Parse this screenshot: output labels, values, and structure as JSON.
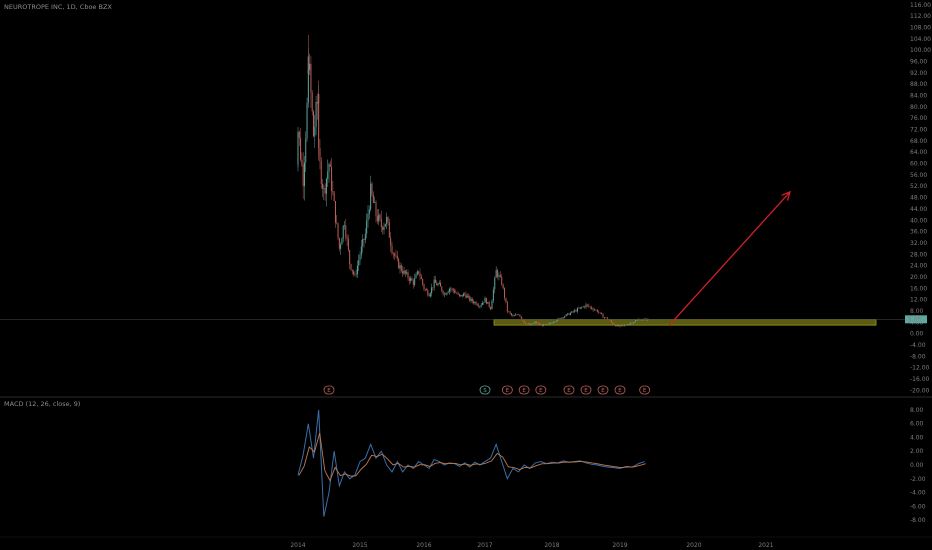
{
  "header": {
    "symbol_title": "NEUROTROPE INC, 1D, Cboe BZX"
  },
  "indicator": {
    "title": "MACD (12, 26, close, 9)"
  },
  "last_price_label": "5.05",
  "chart_data": [
    {
      "type": "candlestick",
      "title": "NEUROTROPE INC, 1D, Cboe BZX",
      "x_ticks": [
        "2014",
        "2015",
        "2016",
        "2017",
        "2018",
        "2019",
        "2020",
        "2021"
      ],
      "y_ticks": [
        "112.00",
        "108.00",
        "104.00",
        "100.00",
        "96.00",
        "92.00",
        "88.00",
        "84.00",
        "80.00",
        "76.00",
        "72.00",
        "68.00",
        "64.00",
        "60.00",
        "56.00",
        "52.00",
        "48.00",
        "44.00",
        "40.00",
        "36.00",
        "32.00",
        "28.00",
        "24.00",
        "20.00",
        "16.00",
        "12.00",
        "8.00",
        "4.00",
        "0.00",
        "-4.00",
        "-8.00",
        "-12.00",
        "-16.00",
        "-20.00"
      ],
      "y_top_label": "116.00",
      "ylim": [
        -22,
        117
      ],
      "close_series": [
        [
          "2014-01",
          60
        ],
        [
          "2014-01",
          72
        ],
        [
          "2014-02",
          55
        ],
        [
          "2014-03",
          88
        ],
        [
          "2014-03",
          98
        ],
        [
          "2014-04",
          70
        ],
        [
          "2014-05",
          85
        ],
        [
          "2014-05",
          62
        ],
        [
          "2014-06",
          50
        ],
        [
          "2014-07",
          60
        ],
        [
          "2014-08",
          45
        ],
        [
          "2014-09",
          30
        ],
        [
          "2014-10",
          40
        ],
        [
          "2014-11",
          25
        ],
        [
          "2014-12",
          20
        ],
        [
          "2015-01",
          28
        ],
        [
          "2015-02",
          35
        ],
        [
          "2015-03",
          50
        ],
        [
          "2015-04",
          42
        ],
        [
          "2015-05",
          38
        ],
        [
          "2015-06",
          40
        ],
        [
          "2015-07",
          30
        ],
        [
          "2015-08",
          25
        ],
        [
          "2015-09",
          22
        ],
        [
          "2015-10",
          20
        ],
        [
          "2015-11",
          18
        ],
        [
          "2015-12",
          22
        ],
        [
          "2016-01",
          16
        ],
        [
          "2016-02",
          14
        ],
        [
          "2016-03",
          18
        ],
        [
          "2016-04",
          17
        ],
        [
          "2016-05",
          14
        ],
        [
          "2016-06",
          16
        ],
        [
          "2016-07",
          15
        ],
        [
          "2016-08",
          13
        ],
        [
          "2016-09",
          14
        ],
        [
          "2016-10",
          12
        ],
        [
          "2016-11",
          11
        ],
        [
          "2016-12",
          10
        ],
        [
          "2017-01",
          12
        ],
        [
          "2017-02",
          9
        ],
        [
          "2017-03",
          22
        ],
        [
          "2017-04",
          18
        ],
        [
          "2017-05",
          8
        ],
        [
          "2017-06",
          6
        ],
        [
          "2017-07",
          7
        ],
        [
          "2017-08",
          4
        ],
        [
          "2017-09",
          3
        ],
        [
          "2017-10",
          4
        ],
        [
          "2017-11",
          3
        ],
        [
          "2017-12",
          3
        ],
        [
          "2018-01",
          4
        ],
        [
          "2018-02",
          5
        ],
        [
          "2018-03",
          6
        ],
        [
          "2018-04",
          7
        ],
        [
          "2018-05",
          8
        ],
        [
          "2018-06",
          9
        ],
        [
          "2018-07",
          10
        ],
        [
          "2018-08",
          9
        ],
        [
          "2018-09",
          8
        ],
        [
          "2018-10",
          6
        ],
        [
          "2018-11",
          5
        ],
        [
          "2018-12",
          3
        ],
        [
          "2019-01",
          2.5
        ],
        [
          "2019-02",
          3
        ],
        [
          "2019-03",
          4
        ],
        [
          "2019-04",
          5
        ],
        [
          "2019-05",
          5
        ]
      ],
      "support_zone": [
        3,
        5
      ],
      "last_price": 5.05,
      "projection_arrow": {
        "from": [
          "2019-09",
          3
        ],
        "to": [
          "2020-12",
          50
        ]
      },
      "earnings_markers": [
        {
          "x": "2014-07",
          "label": "E"
        },
        {
          "x": "2017-01",
          "label": "S"
        },
        {
          "x": "2017-05",
          "label": "E"
        },
        {
          "x": "2017-08",
          "label": "E"
        },
        {
          "x": "2017-11",
          "label": "E"
        },
        {
          "x": "2018-04",
          "label": "E"
        },
        {
          "x": "2018-07",
          "label": "E"
        },
        {
          "x": "2018-10",
          "label": "E"
        },
        {
          "x": "2019-01",
          "label": "E"
        },
        {
          "x": "2019-05",
          "label": "E"
        }
      ]
    },
    {
      "type": "line",
      "title": "MACD (12, 26, close, 9)",
      "y_ticks": [
        "8.00",
        "6.00",
        "4.00",
        "2.00",
        "0.00",
        "-2.00",
        "-4.00",
        "-6.00",
        "-8.00"
      ],
      "ylim": [
        -9,
        9
      ],
      "series": [
        {
          "values": [
            [
              "2014-01",
              -1.5
            ],
            [
              "2014-02",
              1.5
            ],
            [
              "2014-03",
              6
            ],
            [
              "2014-04",
              1
            ],
            [
              "2014-05",
              8
            ],
            [
              "2014-06",
              -7.5
            ],
            [
              "2014-07",
              -4
            ],
            [
              "2014-08",
              2
            ],
            [
              "2014-09",
              -3
            ],
            [
              "2014-10",
              -1
            ],
            [
              "2014-11",
              -2
            ],
            [
              "2014-12",
              -1.5
            ],
            [
              "2015-01",
              0.5
            ],
            [
              "2015-02",
              1
            ],
            [
              "2015-03",
              3
            ],
            [
              "2015-04",
              1
            ],
            [
              "2015-05",
              2
            ],
            [
              "2015-06",
              0
            ],
            [
              "2015-07",
              -1
            ],
            [
              "2015-08",
              0.5
            ],
            [
              "2015-09",
              -1
            ],
            [
              "2015-10",
              0
            ],
            [
              "2015-11",
              -0.5
            ],
            [
              "2015-12",
              0.5
            ],
            [
              "2016-01",
              0
            ],
            [
              "2016-02",
              -0.5
            ],
            [
              "2016-03",
              0.8
            ],
            [
              "2016-04",
              0.5
            ],
            [
              "2016-05",
              0
            ],
            [
              "2016-06",
              0.3
            ],
            [
              "2016-07",
              0.2
            ],
            [
              "2016-08",
              -0.2
            ],
            [
              "2016-09",
              0.3
            ],
            [
              "2016-10",
              -0.3
            ],
            [
              "2016-11",
              0.4
            ],
            [
              "2016-12",
              0
            ],
            [
              "2017-01",
              0.5
            ],
            [
              "2017-02",
              1
            ],
            [
              "2017-03",
              3
            ],
            [
              "2017-04",
              0.5
            ],
            [
              "2017-05",
              -2
            ],
            [
              "2017-06",
              -0.5
            ],
            [
              "2017-07",
              -1
            ],
            [
              "2017-08",
              0
            ],
            [
              "2017-09",
              -0.5
            ],
            [
              "2017-10",
              0.3
            ],
            [
              "2017-11",
              0.5
            ],
            [
              "2017-12",
              0.2
            ],
            [
              "2018-01",
              0.4
            ],
            [
              "2018-02",
              0.3
            ],
            [
              "2018-03",
              0.6
            ],
            [
              "2018-04",
              0.4
            ],
            [
              "2018-05",
              0.5
            ],
            [
              "2018-06",
              0.6
            ],
            [
              "2018-07",
              0.3
            ],
            [
              "2018-08",
              0.1
            ],
            [
              "2018-09",
              0
            ],
            [
              "2018-10",
              -0.2
            ],
            [
              "2018-11",
              -0.3
            ],
            [
              "2018-12",
              -0.4
            ],
            [
              "2019-01",
              -0.5
            ],
            [
              "2019-02",
              -0.2
            ],
            [
              "2019-03",
              -0.3
            ],
            [
              "2019-04",
              0.2
            ],
            [
              "2019-05",
              0.5
            ]
          ]
        }
      ]
    }
  ],
  "colors": {
    "background": "#000000",
    "up_candle": "#5ea89e",
    "down_candle": "#c0605a",
    "macd_line": "#3a6ea8",
    "signal_line": "#c07a50",
    "support_fill": "#6b6b14",
    "support_stroke": "#9d9d24",
    "arrow": "#d0202a",
    "price_label_bg": "#5fa8a0",
    "axis_text": "#7d7d7d",
    "separator": "#2a2a2a"
  }
}
